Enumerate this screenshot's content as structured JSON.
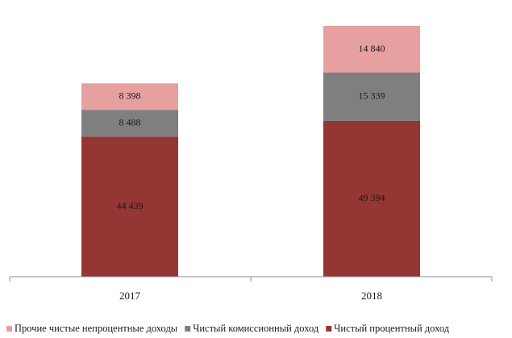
{
  "chart_data": {
    "type": "bar",
    "stacked": true,
    "categories": [
      "2017",
      "2018"
    ],
    "series": [
      {
        "name": "Чистый процентный доход",
        "values": [
          44439,
          49394
        ],
        "labels": [
          "44 439",
          "49 394"
        ],
        "color": "#943634"
      },
      {
        "name": "Чистый комиссионный доход",
        "values": [
          8488,
          15339
        ],
        "labels": [
          "8 488",
          "15 339"
        ],
        "color": "#7f7f7f"
      },
      {
        "name": "Прочие чистые непроцентные доходы",
        "values": [
          8398,
          14840
        ],
        "labels": [
          "8 398",
          "14 840"
        ],
        "color": "#e6a0a0"
      }
    ],
    "legend_order": [
      2,
      1,
      0
    ],
    "legend_position": "bottom",
    "grid": false,
    "ylim": [
      0,
      80000
    ]
  }
}
